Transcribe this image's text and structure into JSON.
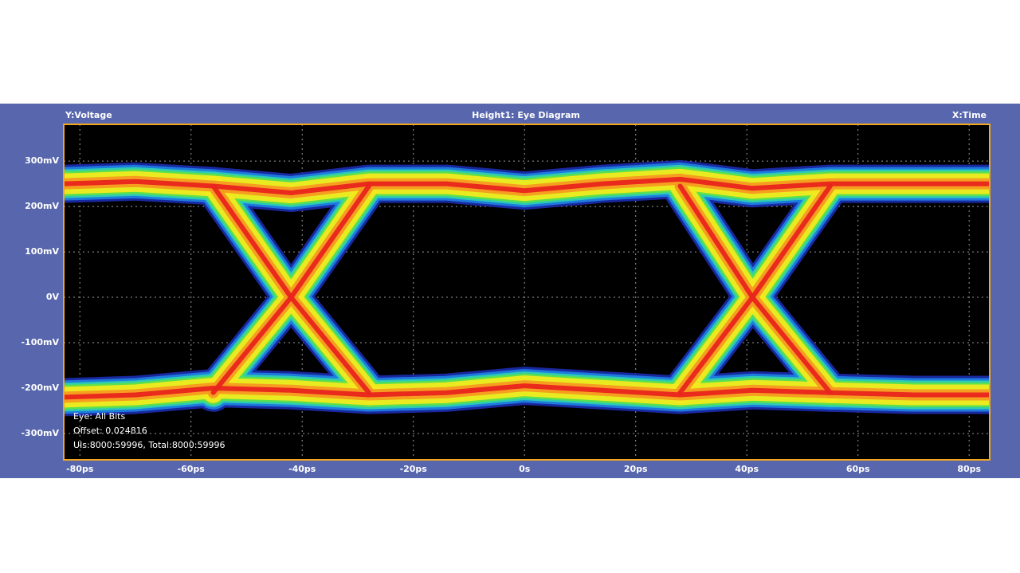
{
  "chart_data": {
    "type": "eye",
    "title": "Height1: Eye Diagram",
    "y_label": "Y:Voltage",
    "x_label": "X:Time",
    "annotations": [
      "Eye: All Bits",
      "Offset: 0.024816",
      "UIs:8000:59996, Total:8000:59996"
    ],
    "x": [
      -82.9,
      -70,
      -56,
      -42,
      -28,
      -14,
      0,
      14,
      28,
      41,
      55,
      70,
      83.7
    ],
    "series": [
      {
        "values": [
          250,
          255,
          245,
          230,
          250,
          250,
          235,
          250,
          260,
          240,
          250,
          250,
          250
        ]
      },
      {
        "values": [
          -220,
          -215,
          -200,
          -205,
          -215,
          -210,
          -195,
          -205,
          -215,
          -205,
          -210,
          -215,
          -215
        ]
      },
      {
        "values": [
          null,
          null,
          -210,
          0,
          245,
          null,
          null,
          null,
          -210,
          0,
          245,
          null,
          null
        ]
      },
      {
        "values": [
          null,
          null,
          245,
          0,
          -210,
          null,
          null,
          null,
          245,
          0,
          -210,
          null,
          null
        ]
      }
    ],
    "xlim": [
      -82.9,
      83.7
    ],
    "ylim": [
      -358,
      381
    ],
    "yticks": [
      {
        "value": 300,
        "label": "300mV"
      },
      {
        "value": 200,
        "label": "200mV"
      },
      {
        "value": 100,
        "label": "100mV"
      },
      {
        "value": 0,
        "label": "0V"
      },
      {
        "value": -100,
        "label": "-100mV"
      },
      {
        "value": -200,
        "label": "-200mV"
      },
      {
        "value": -300,
        "label": "-300mV"
      }
    ],
    "xticks": [
      {
        "value": -80,
        "label": "-80ps"
      },
      {
        "value": -60,
        "label": "-60ps"
      },
      {
        "value": -40,
        "label": "-40ps"
      },
      {
        "value": -20,
        "label": "-20ps"
      },
      {
        "value": 0,
        "label": "0s"
      },
      {
        "value": 20,
        "label": "20ps"
      },
      {
        "value": 40,
        "label": "40ps"
      },
      {
        "value": 60,
        "label": "60ps"
      },
      {
        "value": 80,
        "label": "80ps"
      }
    ],
    "grid": true
  }
}
